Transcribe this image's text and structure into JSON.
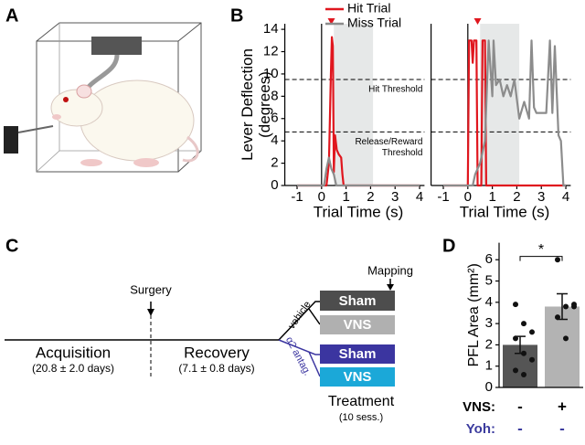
{
  "panel_labels": [
    "A",
    "B",
    "C",
    "D"
  ],
  "chart_data": [
    {
      "type": "line",
      "ylabel": [
        "Lever Deflection",
        "(degrees)"
      ],
      "xlabel": "Trial Time (s)",
      "xlim": [
        -1.5,
        4.2
      ],
      "xticks": [
        -1,
        0,
        1,
        2,
        3,
        4
      ],
      "ylim": [
        0,
        14.5
      ],
      "yticks": [
        0,
        2,
        4,
        6,
        8,
        10,
        12,
        14
      ],
      "window": [
        0.5,
        2.1
      ],
      "cue_marker": 0.4,
      "thresholds": [
        {
          "value": 9.5,
          "label": [
            "Hit Threshold"
          ]
        },
        {
          "value": 4.8,
          "label": [
            "Release/Reward",
            "Threshold"
          ]
        }
      ],
      "series": [
        {
          "name": "Hit Trial",
          "color": "#e0161e",
          "x": [
            -1,
            0.2,
            0.3,
            0.38,
            0.42,
            0.46,
            0.5,
            0.55,
            0.62,
            0.7,
            0.8,
            0.85,
            0.9,
            4
          ],
          "values": [
            0,
            0,
            2,
            10,
            13.3,
            12.5,
            1.2,
            4.5,
            3.2,
            2.8,
            2.5,
            1,
            0,
            0
          ]
        },
        {
          "name": "Miss Trial",
          "color": "#8c8c8c",
          "x": [
            -1,
            0.1,
            0.2,
            0.3,
            0.4,
            0.5,
            0.6,
            4
          ],
          "values": [
            0,
            0,
            1.5,
            2.5,
            1.5,
            1,
            0,
            0
          ]
        }
      ]
    },
    {
      "type": "line",
      "xlabel": "Trial Time (s)",
      "xlim": [
        -1.5,
        4.2
      ],
      "xticks": [
        -1,
        0,
        1,
        2,
        3,
        4
      ],
      "ylim": [
        0,
        14.5
      ],
      "window": [
        0.5,
        2.1
      ],
      "cue_marker": 0.4,
      "thresholds": [
        {
          "value": 9.5
        },
        {
          "value": 4.8
        }
      ],
      "series": [
        {
          "color": "#e0161e",
          "x": [
            -1,
            0,
            0.05,
            0.15,
            0.2,
            0.25,
            0.35,
            0.4,
            0.55,
            0.6,
            0.7,
            0.75,
            4
          ],
          "values": [
            0,
            0,
            13,
            13,
            11,
            13,
            13,
            0,
            0,
            13,
            13,
            0,
            0
          ]
        },
        {
          "color": "#8c8c8c",
          "x": [
            -1,
            0.2,
            0.3,
            0.5,
            0.7,
            0.85,
            1.0,
            1.05,
            1.15,
            1.3,
            1.45,
            1.6,
            1.75,
            1.9,
            2.1,
            2.3,
            2.5,
            2.6,
            2.7,
            2.8,
            3.0,
            3.2,
            3.35,
            3.45,
            3.55,
            3.7,
            3.8,
            3.9,
            4
          ],
          "values": [
            0,
            0,
            1,
            2,
            4,
            13,
            8,
            13,
            9,
            9.5,
            8,
            9,
            8,
            9.5,
            6,
            7.5,
            6,
            13,
            7,
            6.5,
            6.5,
            6.5,
            13,
            6.5,
            12.5,
            4.5,
            4,
            0,
            0
          ]
        }
      ]
    },
    {
      "type": "bar",
      "ylabel": "PFL Area (mm²)",
      "ylim": [
        0,
        6.8
      ],
      "yticks": [
        0,
        1,
        2,
        3,
        4,
        5,
        6
      ],
      "values": [
        2.0,
        3.8
      ],
      "errors": [
        0.4,
        0.6
      ],
      "colors": [
        "#555555",
        "#b3b3b3"
      ],
      "points": [
        [
          3.9,
          3.0,
          2.6,
          2.3,
          1.6,
          1.3,
          0.8,
          0.6
        ],
        [
          6.0,
          3.8,
          3.9,
          3.3,
          2.3,
          3.8
        ]
      ],
      "significance": "*",
      "rows": [
        {
          "label": "VNS:",
          "values": [
            "-",
            "+"
          ],
          "color": "#000000"
        },
        {
          "label": "Yoh:",
          "values": [
            "-",
            "-"
          ],
          "color": "#3b3b9e"
        }
      ]
    }
  ],
  "timeline": {
    "phases": [
      {
        "label": "Acquisition",
        "detail": "(20.8 ± 2.0 days)"
      },
      {
        "label": "Recovery",
        "detail": "(7.1 ± 0.8 days)"
      }
    ],
    "events": [
      "Surgery",
      "Mapping"
    ],
    "branches": [
      {
        "label": "vehicle",
        "groups": [
          "Sham",
          "VNS"
        ]
      },
      {
        "label": "α2 antag.",
        "groups": [
          "Sham",
          "VNS"
        ]
      }
    ],
    "treatment": {
      "label": "Treatment",
      "detail": "(10 sess.)"
    }
  }
}
